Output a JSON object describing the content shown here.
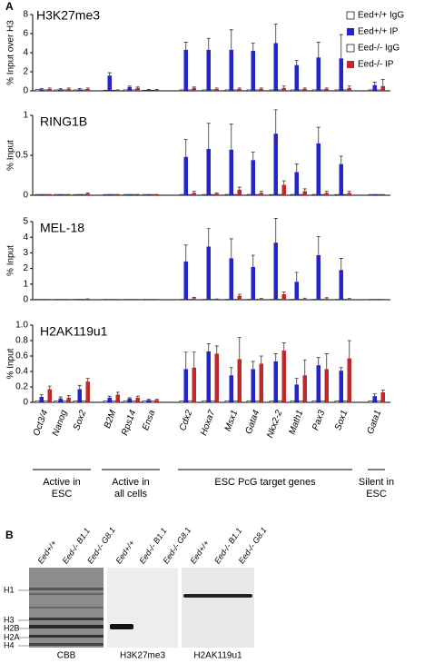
{
  "panel_a_label": "A",
  "chart_data": [
    {
      "type": "bar",
      "title": "H3K27me3",
      "y_label": "% Input over H3",
      "ylim": [
        0,
        8
      ],
      "yticks": [
        0,
        2,
        4,
        6,
        8
      ],
      "series": [
        {
          "name": "Eed+/+ IgG",
          "color": "#ffffff",
          "values": [
            0.15,
            0.1,
            0.1,
            0.05,
            0.1,
            0.05,
            0.1,
            0.1,
            0.1,
            0.1,
            0.1,
            0.1,
            0.1,
            0.1,
            0.1
          ]
        },
        {
          "name": "Eed+/+ IP",
          "color": "#2424c8",
          "values": [
            0.15,
            0.15,
            0.15,
            1.6,
            0.4,
            0.1,
            4.3,
            4.3,
            4.3,
            4.2,
            5.0,
            2.7,
            3.5,
            3.4,
            0.6
          ],
          "errors": [
            0.1,
            0.1,
            0.1,
            0.3,
            0.1,
            0.05,
            0.8,
            1.2,
            2.1,
            0.8,
            2.0,
            0.5,
            1.6,
            2.5,
            0.3
          ]
        },
        {
          "name": "Eed-/- IgG",
          "color": "#ffffff",
          "values": [
            0.1,
            0.1,
            0.1,
            0.05,
            0.1,
            0.05,
            0.1,
            0.1,
            0.1,
            0.1,
            0.1,
            0.1,
            0.1,
            0.1,
            0.1
          ]
        },
        {
          "name": "Eed-/- IP",
          "color": "#c0282c",
          "values": [
            0.2,
            0.2,
            0.2,
            0.05,
            0.3,
            0.1,
            0.3,
            0.2,
            0.2,
            0.2,
            0.3,
            0.2,
            0.2,
            0.3,
            0.5
          ],
          "errors": [
            0.1,
            0.1,
            0.1,
            0.05,
            0.1,
            0.05,
            0.1,
            0.1,
            0.1,
            0.1,
            0.2,
            0.1,
            0.1,
            0.2,
            0.7
          ]
        }
      ]
    },
    {
      "type": "bar",
      "title": "RING1B",
      "y_label": "% Input",
      "ylim": [
        0,
        1
      ],
      "yticks": [
        0,
        0.5,
        1
      ],
      "series": [
        {
          "color": "#ffffff",
          "values": [
            0.01,
            0.01,
            0.01,
            0.01,
            0.01,
            0.01,
            0.01,
            0.01,
            0.01,
            0.01,
            0.01,
            0.01,
            0.01,
            0.01,
            0.01
          ]
        },
        {
          "color": "#2424c8",
          "values": [
            0.01,
            0.01,
            0.01,
            0.01,
            0.01,
            0.01,
            0.48,
            0.58,
            0.57,
            0.44,
            0.77,
            0.29,
            0.65,
            0.39,
            0.01
          ],
          "errors": [
            0,
            0,
            0,
            0,
            0,
            0,
            0.22,
            0.32,
            0.32,
            0.1,
            0.3,
            0.1,
            0.2,
            0.1,
            0
          ]
        },
        {
          "color": "#ffffff",
          "values": [
            0.01,
            0.01,
            0.01,
            0.01,
            0.01,
            0.01,
            0.01,
            0.01,
            0.01,
            0.01,
            0.01,
            0.01,
            0.01,
            0.01,
            0.01
          ]
        },
        {
          "color": "#c0282c",
          "values": [
            0.01,
            0.01,
            0.02,
            0.01,
            0.01,
            0.01,
            0.03,
            0.02,
            0.07,
            0.03,
            0.13,
            0.05,
            0.03,
            0.03,
            0.01
          ],
          "errors": [
            0,
            0,
            0.01,
            0,
            0,
            0,
            0.02,
            0.01,
            0.03,
            0.02,
            0.05,
            0.03,
            0.02,
            0.02,
            0
          ]
        }
      ]
    },
    {
      "type": "bar",
      "title": "MEL-18",
      "y_label": "% Input",
      "ylim": [
        0,
        5
      ],
      "yticks": [
        0,
        1,
        2,
        3,
        4,
        5
      ],
      "series": [
        {
          "color": "#ffffff",
          "values": [
            0.02,
            0.02,
            0.02,
            0.02,
            0.02,
            0.02,
            0.02,
            0.02,
            0.02,
            0.02,
            0.02,
            0.02,
            0.02,
            0.02,
            0.02
          ]
        },
        {
          "color": "#2424c8",
          "values": [
            0.02,
            0.02,
            0.03,
            0.02,
            0.02,
            0.02,
            2.45,
            3.4,
            2.65,
            2.1,
            3.65,
            1.15,
            2.85,
            1.9,
            0.02
          ],
          "errors": [
            0,
            0,
            0,
            0,
            0,
            0,
            1.05,
            1.15,
            1.25,
            0.75,
            1.55,
            0.6,
            1.2,
            0.75,
            0
          ]
        },
        {
          "color": "#ffffff",
          "values": [
            0.02,
            0.02,
            0.02,
            0.02,
            0.02,
            0.02,
            0.02,
            0.02,
            0.02,
            0.02,
            0.02,
            0.02,
            0.02,
            0.02,
            0.02
          ]
        },
        {
          "color": "#c0282c",
          "values": [
            0.02,
            0.02,
            0.04,
            0.02,
            0.02,
            0.02,
            0.1,
            0.03,
            0.25,
            0.05,
            0.35,
            0.05,
            0.08,
            0.05,
            0.02
          ],
          "errors": [
            0,
            0,
            0.02,
            0,
            0,
            0,
            0.05,
            0.02,
            0.1,
            0.03,
            0.15,
            0.05,
            0.05,
            0.03,
            0
          ]
        }
      ]
    },
    {
      "type": "bar",
      "title": "H2AK119u1",
      "y_label": "% Input",
      "ylim": [
        0,
        1
      ],
      "yticks": [
        0,
        0.2,
        0.4,
        0.6,
        0.8,
        {
          "value": 1,
          "label": "1.0"
        }
      ],
      "categories": [
        "Oct3/4",
        "Nanog",
        "Sox2",
        "B2M",
        "Rps14",
        "Ensa",
        "Cdx2",
        "Hoxa7",
        "Msx1",
        "Gata4",
        "Nkx2-2",
        "Math1",
        "Pax3",
        "Sox1",
        "Gata1"
      ],
      "series": [
        {
          "color": "#ffffff",
          "values": [
            0.02,
            0.02,
            0.02,
            0.02,
            0.02,
            0.02,
            0.02,
            0.02,
            0.02,
            0.02,
            0.02,
            0.02,
            0.02,
            0.02,
            0.02
          ]
        },
        {
          "color": "#2424c8",
          "values": [
            0.07,
            0.05,
            0.17,
            0.06,
            0.05,
            0.03,
            0.43,
            0.66,
            0.35,
            0.43,
            0.53,
            0.23,
            0.48,
            0.41,
            0.08
          ],
          "errors": [
            0.03,
            0.02,
            0.05,
            0.02,
            0.01,
            0.01,
            0.22,
            0.1,
            0.1,
            0.1,
            0.1,
            0.08,
            0.1,
            0.04,
            0.03
          ]
        },
        {
          "color": "#ffffff",
          "values": [
            0.02,
            0.02,
            0.02,
            0.02,
            0.02,
            0.02,
            0.02,
            0.02,
            0.02,
            0.02,
            0.02,
            0.02,
            0.02,
            0.02,
            0.02
          ]
        },
        {
          "color": "#c0282c",
          "values": [
            0.17,
            0.06,
            0.27,
            0.1,
            0.06,
            0.03,
            0.45,
            0.63,
            0.56,
            0.5,
            0.67,
            0.35,
            0.43,
            0.57,
            0.13
          ],
          "errors": [
            0.04,
            0.03,
            0.04,
            0.03,
            0.02,
            0.01,
            0.2,
            0.1,
            0.28,
            0.1,
            0.1,
            0.2,
            0.2,
            0.23,
            0.03
          ]
        }
      ]
    }
  ],
  "groups": [
    [
      "Active in",
      "ESC"
    ],
    [
      "Active in",
      "all cells"
    ],
    [
      "ESC PcG target genes"
    ],
    [
      "Silent in",
      "ESC"
    ]
  ],
  "panel_b": {
    "label": "B",
    "lanes": [
      "Eed+/+",
      "Eed-/- B1.1",
      "Eed-/- G8.1"
    ],
    "blots": [
      "CBB",
      "H3K27me3",
      "H2AK119u1"
    ],
    "markers": [
      "H1",
      "H3",
      "H2B",
      "H2A",
      "H4"
    ]
  }
}
